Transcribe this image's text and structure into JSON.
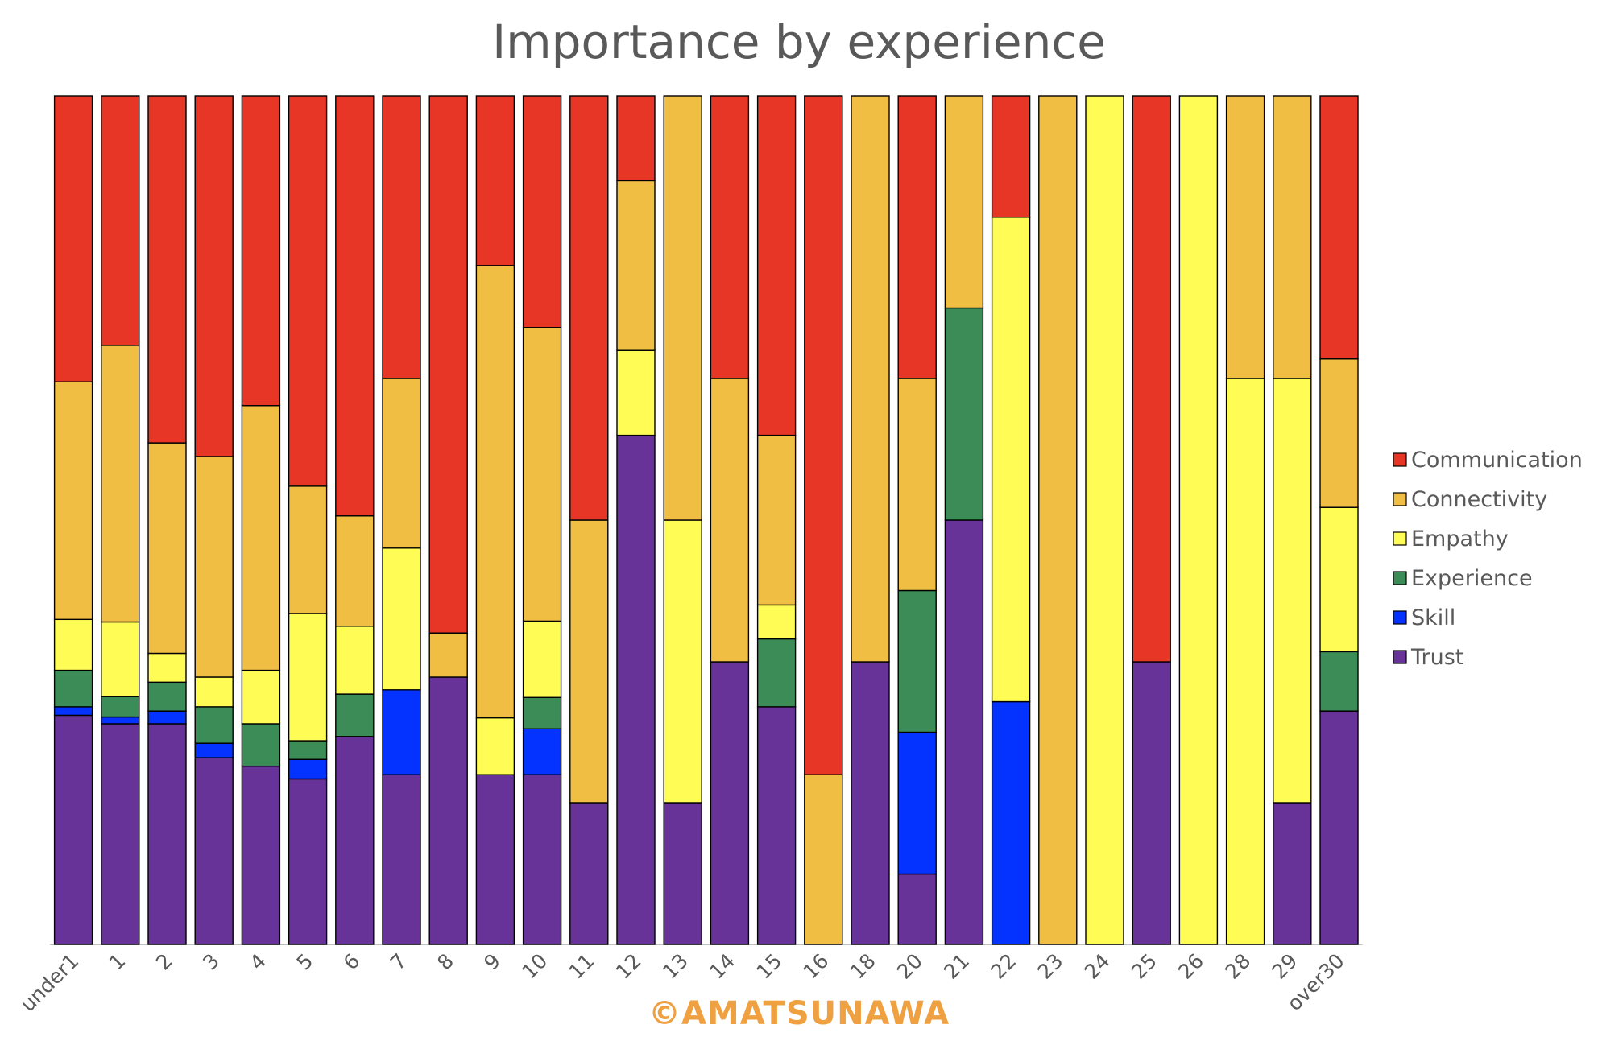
{
  "chart_data": {
    "type": "bar",
    "stacked": "percent",
    "title": "Importance by experience",
    "watermark": "©AMATSUNAWA",
    "xlabel": "",
    "ylabel": "",
    "ylim": [
      0,
      100
    ],
    "grid": false,
    "legend_position": "right",
    "categories": [
      "under1",
      "1",
      "2",
      "3",
      "4",
      "5",
      "6",
      "7",
      "8",
      "9",
      "10",
      "11",
      "12",
      "13",
      "14",
      "15",
      "16",
      "18",
      "20",
      "21",
      "22",
      "23",
      "24",
      "25",
      "26",
      "28",
      "29",
      "over30"
    ],
    "series": [
      {
        "name": "Trust",
        "color": "#673399",
        "values": [
          27,
          26,
          26,
          22,
          21,
          19.5,
          24.5,
          20,
          31.5,
          20,
          20,
          16.7,
          60,
          16.7,
          33.3,
          28,
          0,
          33.3,
          8.3,
          50,
          0,
          0,
          0,
          33.3,
          0,
          0,
          16.7,
          27.5
        ]
      },
      {
        "name": "Skill",
        "color": "#0433FF",
        "values": [
          1,
          0.8,
          1.5,
          1.7,
          0,
          2.3,
          0,
          10,
          0,
          0,
          5.4,
          0,
          0,
          0,
          0,
          0,
          0,
          0,
          16.7,
          0,
          28.6,
          0,
          0,
          0,
          0,
          0,
          0,
          0
        ]
      },
      {
        "name": "Experience",
        "color": "#3C8C57",
        "values": [
          4.3,
          2.4,
          3.4,
          4.3,
          5,
          2.2,
          5,
          0,
          0,
          0,
          3.7,
          0,
          0,
          0,
          0,
          8,
          0,
          0,
          16.7,
          25,
          0,
          0,
          0,
          0,
          0,
          0,
          0,
          7
        ]
      },
      {
        "name": "Empathy",
        "color": "#FFFC55",
        "values": [
          6,
          8.8,
          3.4,
          3.5,
          6.3,
          15,
          8,
          16.7,
          0,
          6.7,
          9,
          0,
          10,
          33.3,
          0,
          4,
          0,
          0,
          0,
          0,
          57.1,
          0,
          100,
          0,
          100,
          66.7,
          50,
          17
        ]
      },
      {
        "name": "Connectivity",
        "color": "#F1BE44",
        "values": [
          28,
          32.6,
          24.8,
          26,
          31.2,
          15,
          13,
          20,
          5.2,
          53.3,
          34.6,
          33.3,
          20,
          50,
          33.4,
          20,
          20,
          66.7,
          25,
          25,
          0,
          100,
          0,
          0,
          0,
          33.3,
          33.3,
          17.5
        ]
      },
      {
        "name": "Communication",
        "color": "#E73625",
        "values": [
          33.7,
          29.4,
          40.9,
          42.5,
          36.5,
          46,
          49.5,
          33.3,
          63.3,
          20,
          27.3,
          50,
          10,
          0,
          33.3,
          40,
          80,
          0,
          33.3,
          0,
          14.3,
          0,
          0,
          66.7,
          0,
          0,
          0,
          31
        ]
      }
    ]
  }
}
